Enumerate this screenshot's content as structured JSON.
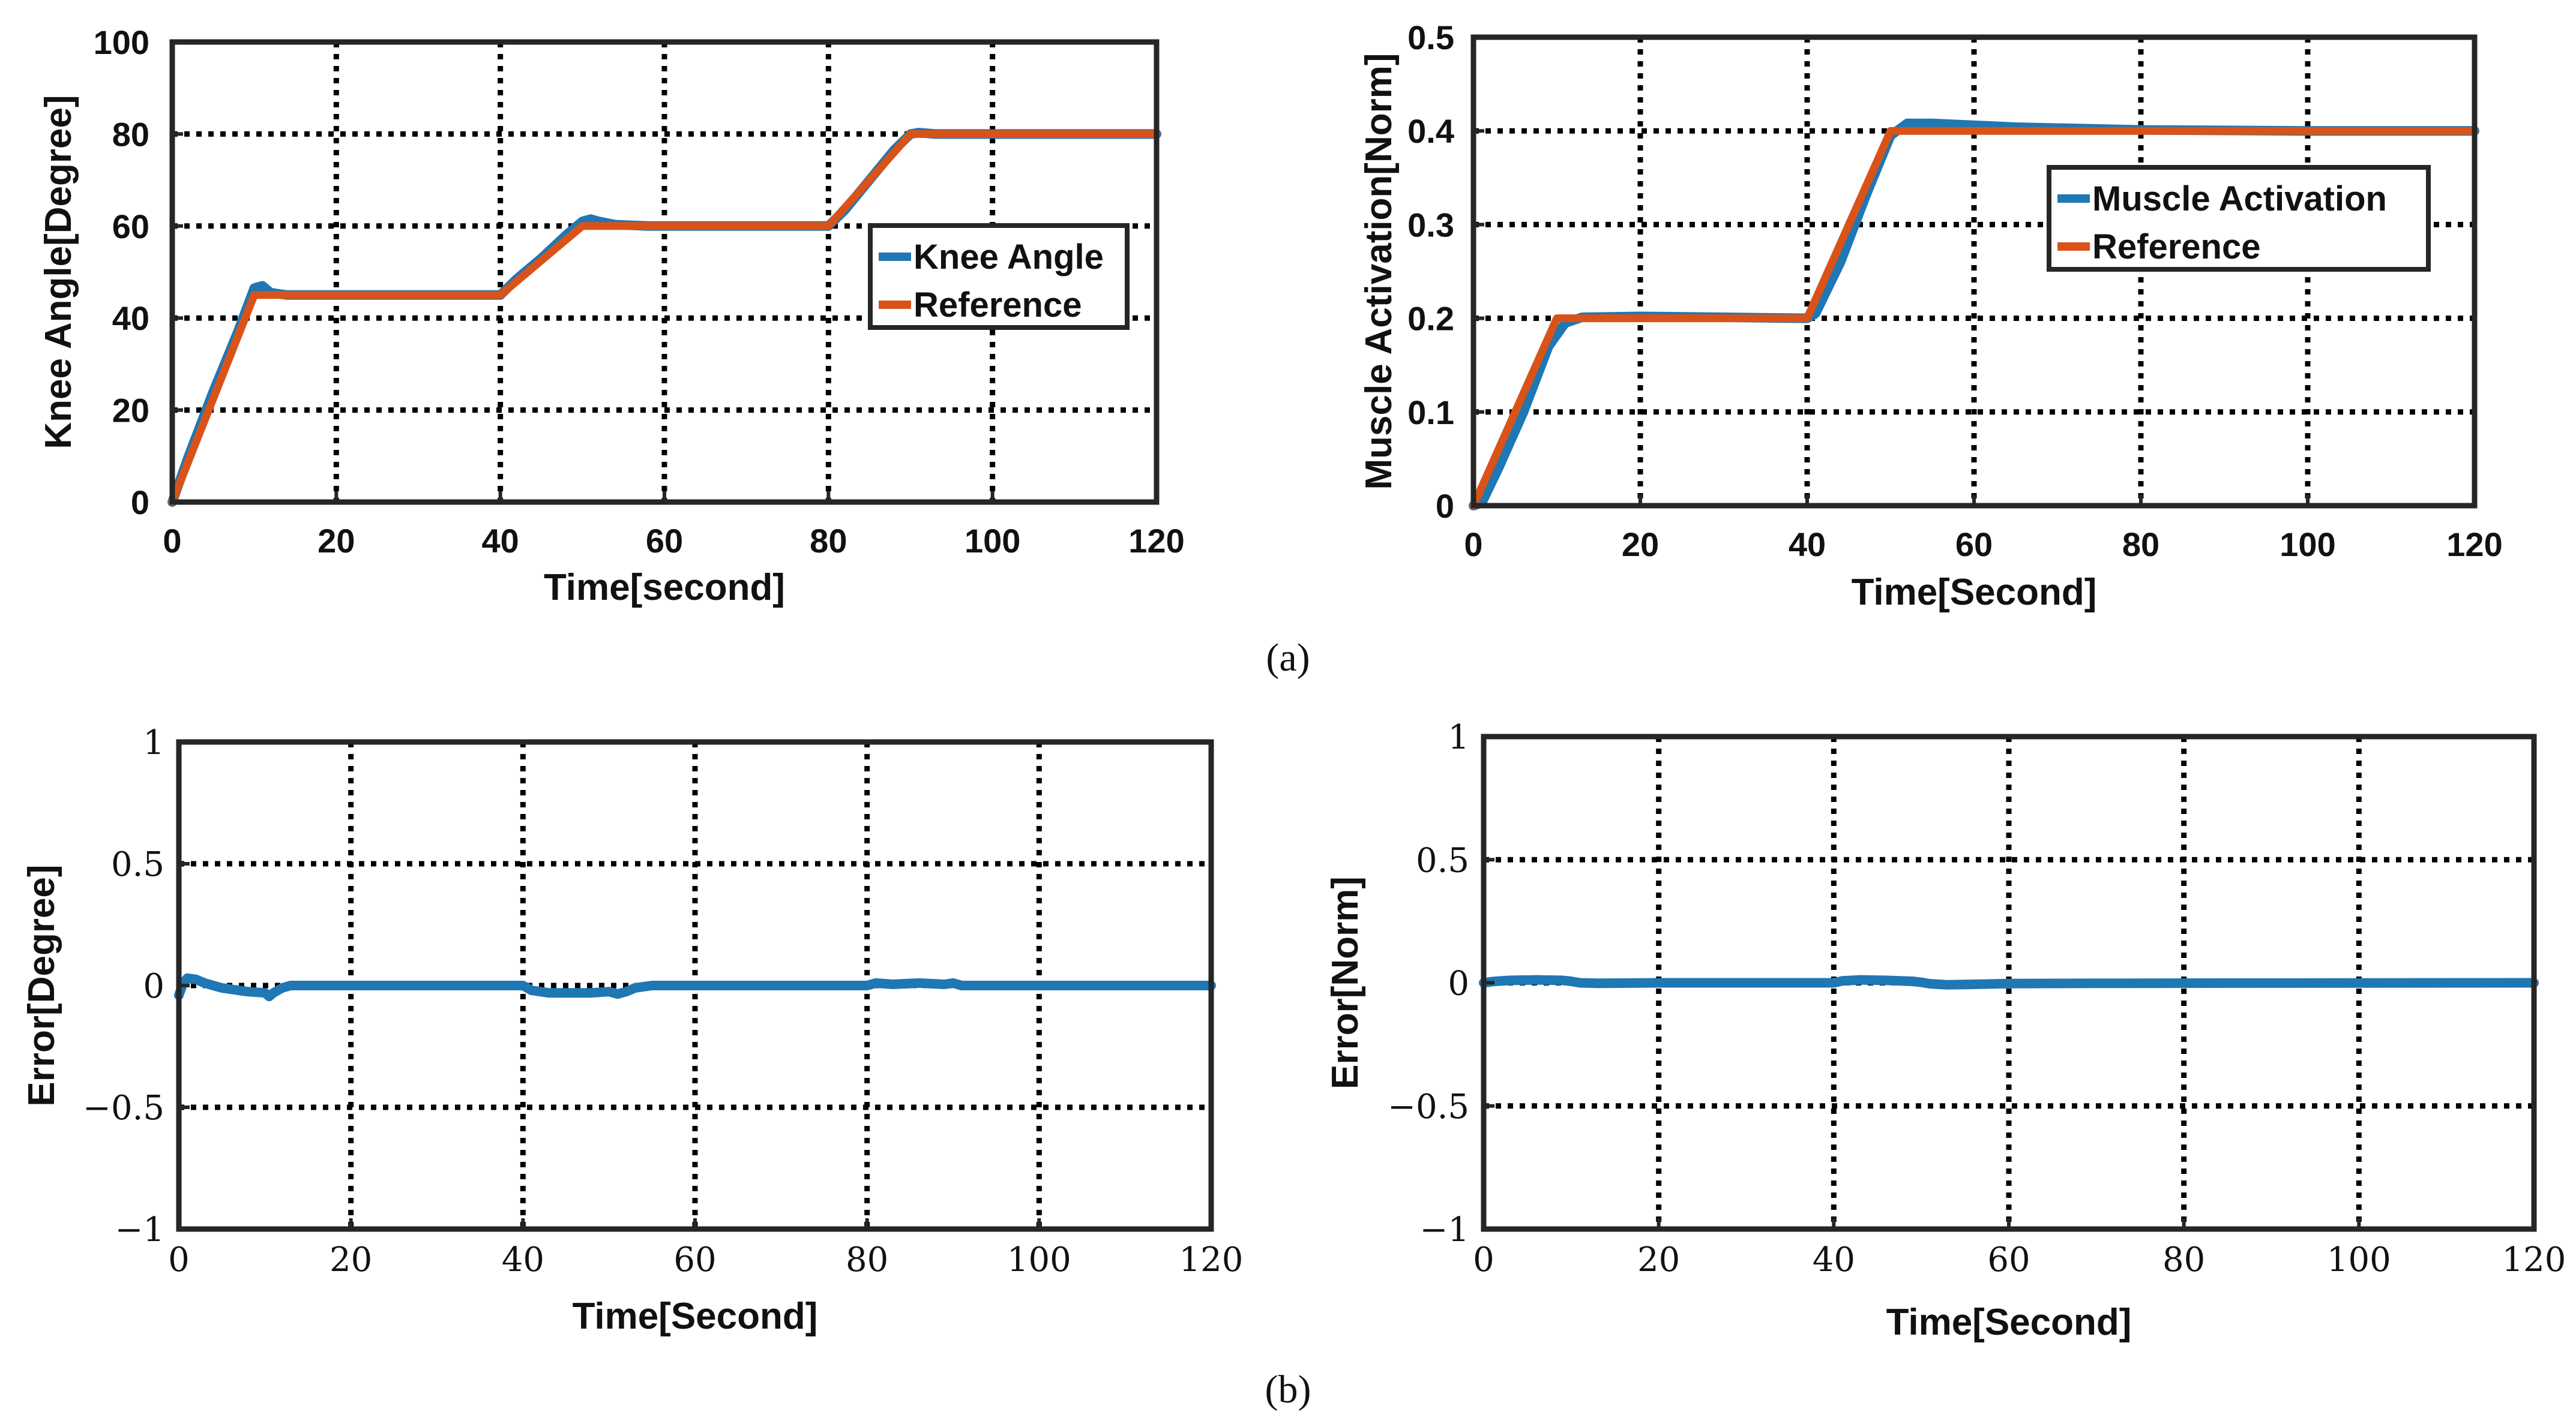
{
  "panel_labels": {
    "a": "(a)",
    "b": "(b)"
  },
  "colors": {
    "series_blue": "#1f77b4",
    "series_orange": "#d95319",
    "axis": "#262626",
    "grid": "#000000"
  },
  "chart_data": [
    {
      "type": "line",
      "id": "knee",
      "xlabel": "Time[second]",
      "ylabel": "Knee Angle[Degree]",
      "xlim": [
        0,
        120
      ],
      "ylim": [
        0,
        100
      ],
      "xticks": [
        0,
        20,
        40,
        60,
        80,
        100,
        120
      ],
      "yticks": [
        0,
        20,
        40,
        60,
        80,
        100
      ],
      "ytick_labels": [
        "0",
        "20",
        "40",
        "60",
        "80",
        "100"
      ],
      "grid": true,
      "legend": "right",
      "series": [
        {
          "name": "Knee Angle",
          "color": "#1f77b4",
          "x": [
            0,
            2,
            5,
            8,
            10,
            11,
            12,
            14,
            20,
            30,
            40,
            42,
            45,
            48,
            50,
            51,
            52,
            54,
            58,
            70,
            80,
            82,
            85,
            88,
            90,
            91,
            93,
            100,
            120
          ],
          "y": [
            0,
            10,
            24,
            37,
            46.5,
            47,
            45.5,
            45,
            45,
            45,
            45,
            48.5,
            53,
            58,
            61,
            61.5,
            61,
            60.3,
            60,
            60,
            60,
            63.5,
            70,
            76.5,
            80,
            80.3,
            80,
            80,
            80
          ]
        },
        {
          "name": "Reference",
          "color": "#d95319",
          "x": [
            0,
            10,
            40,
            50,
            80,
            90,
            120
          ],
          "y": [
            0,
            45,
            45,
            60,
            60,
            80,
            80
          ]
        }
      ]
    },
    {
      "type": "line",
      "id": "muscle",
      "xlabel": "Time[Second]",
      "ylabel": "Muscle Activation[Norm]",
      "xlim": [
        0,
        120
      ],
      "ylim": [
        0,
        0.5
      ],
      "xticks": [
        0,
        20,
        40,
        60,
        80,
        100,
        120
      ],
      "yticks": [
        0,
        0.1,
        0.2,
        0.3,
        0.4,
        0.5
      ],
      "ytick_labels": [
        "0",
        "0.1",
        "0.2",
        "0.3",
        "0.4",
        "0.5"
      ],
      "grid": true,
      "legend": "right",
      "series": [
        {
          "name": "Muscle Activation",
          "color": "#1f77b4",
          "x": [
            0,
            1,
            3,
            6,
            9,
            11,
            13,
            20,
            30,
            40,
            41,
            44,
            47,
            50,
            52,
            55,
            65,
            80,
            100,
            120
          ],
          "y": [
            0,
            0.003,
            0.04,
            0.1,
            0.17,
            0.195,
            0.201,
            0.202,
            0.201,
            0.2,
            0.205,
            0.26,
            0.33,
            0.395,
            0.408,
            0.408,
            0.404,
            0.401,
            0.4,
            0.4
          ]
        },
        {
          "name": "Reference",
          "color": "#d95319",
          "x": [
            0,
            10,
            40,
            50,
            120
          ],
          "y": [
            0,
            0.2,
            0.2,
            0.4,
            0.4
          ]
        }
      ]
    },
    {
      "type": "line",
      "id": "error-degree",
      "xlabel": "Time[Second]",
      "ylabel": "Error[Degree]",
      "xlim": [
        0,
        120
      ],
      "ylim": [
        -1,
        1
      ],
      "xticks": [
        0,
        20,
        40,
        60,
        80,
        100,
        120
      ],
      "yticks": [
        -1,
        -0.5,
        0,
        0.5,
        1
      ],
      "ytick_labels": [
        "−1",
        "−0.5",
        "0",
        "0.5",
        "1"
      ],
      "grid": true,
      "series": [
        {
          "name": "Error",
          "color": "#1f77b4",
          "x": [
            0,
            0.5,
            1,
            2,
            3,
            5,
            8,
            10,
            10.5,
            11,
            12,
            13,
            15,
            20,
            40,
            41,
            43,
            48,
            50,
            51,
            52,
            53,
            55,
            60,
            80,
            81,
            83,
            86,
            89,
            90,
            91,
            95,
            120
          ],
          "y": [
            -0.04,
            0.01,
            0.03,
            0.025,
            0.01,
            -0.01,
            -0.025,
            -0.03,
            -0.045,
            -0.03,
            -0.01,
            0,
            0,
            0,
            0,
            -0.02,
            -0.03,
            -0.03,
            -0.025,
            -0.035,
            -0.025,
            -0.01,
            0,
            0,
            0,
            0.01,
            0.005,
            0.01,
            0.005,
            0.01,
            0,
            0,
            0
          ]
        }
      ]
    },
    {
      "type": "line",
      "id": "error-norm",
      "xlabel": "Time[Second]",
      "ylabel": "Error[Norm]",
      "xlim": [
        0,
        120
      ],
      "ylim": [
        -1,
        1
      ],
      "xticks": [
        0,
        20,
        40,
        60,
        80,
        100,
        120
      ],
      "yticks": [
        -1,
        -0.5,
        0,
        0.5,
        1
      ],
      "ytick_labels": [
        "−1",
        "−0.5",
        "0",
        "0.5",
        "1"
      ],
      "grid": true,
      "series": [
        {
          "name": "Error",
          "color": "#1f77b4",
          "x": [
            0,
            1,
            3,
            6,
            9,
            10,
            11,
            13,
            20,
            40,
            41,
            43,
            46,
            49,
            50,
            51,
            53,
            56,
            60,
            70,
            90,
            120
          ],
          "y": [
            0,
            0.005,
            0.01,
            0.012,
            0.01,
            0.006,
            0,
            -0.002,
            0,
            0,
            0.008,
            0.012,
            0.01,
            0.006,
            0.002,
            -0.004,
            -0.008,
            -0.006,
            -0.003,
            -0.002,
            -0.001,
            0
          ]
        }
      ]
    }
  ]
}
